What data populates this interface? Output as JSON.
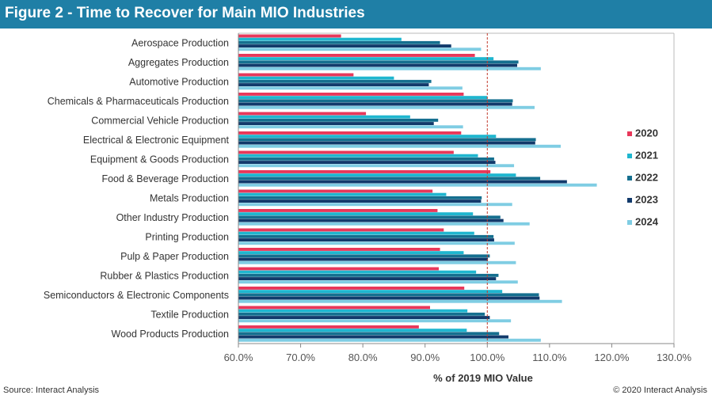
{
  "header": {
    "title": "Figure 2 - Time to Recover for Main MIO Industries"
  },
  "footer": {
    "source": "Source: Interact Analysis",
    "copyright": "© 2020 Interact Analysis"
  },
  "colors": {
    "header_bg": "#1f7fa6",
    "series_2020": "#e8385a",
    "series_2021": "#1fb6cf",
    "series_2022": "#156f8f",
    "series_2023": "#123a6b",
    "series_2024": "#7fcde3",
    "reference_line": "#c0392b"
  },
  "chart_data": {
    "type": "bar",
    "orientation": "horizontal",
    "xlabel": "% of 2019  MIO Value",
    "xlim": [
      60,
      130
    ],
    "xticks": [
      60,
      70,
      80,
      90,
      100,
      110,
      120,
      130
    ],
    "xtick_labels": [
      "60.0%",
      "70.0%",
      "80.0%",
      "90.0%",
      "100.0%",
      "110.0%",
      "120.0%",
      "130.0%"
    ],
    "reference_line": 100,
    "grid": false,
    "legend_position": "right",
    "categories": [
      "Aerospace Production",
      "Aggregates Production",
      "Automotive Production",
      "Chemicals & Pharmaceuticals Production",
      "Commercial Vehicle Production",
      "Electrical & Electronic Equipment",
      "Equipment & Goods Production",
      "Food & Beverage Production",
      "Metals Production",
      "Other Industry Production",
      "Printing Production",
      "Pulp & Paper Production",
      "Rubber & Plastics Production",
      "Semiconductors & Electronic Components",
      "Textile Production",
      "Wood Products Production"
    ],
    "series": [
      {
        "name": "2020",
        "values": [
          76.5,
          98.0,
          78.5,
          96.2,
          80.5,
          95.8,
          94.6,
          100.5,
          91.2,
          92.0,
          93.0,
          92.4,
          92.2,
          96.3,
          90.8,
          89.0
        ]
      },
      {
        "name": "2021",
        "values": [
          86.2,
          101.0,
          85.0,
          100.0,
          87.6,
          101.4,
          98.5,
          104.6,
          93.4,
          97.7,
          97.9,
          96.2,
          98.2,
          102.4,
          96.8,
          96.7
        ]
      },
      {
        "name": "2022",
        "values": [
          92.4,
          105.0,
          91.0,
          104.1,
          92.1,
          107.8,
          101.1,
          108.5,
          99.1,
          102.1,
          101.0,
          100.4,
          101.8,
          108.3,
          99.6,
          101.9
        ]
      },
      {
        "name": "2023",
        "values": [
          94.2,
          104.8,
          90.6,
          104.0,
          91.4,
          107.7,
          101.3,
          112.8,
          99.0,
          102.6,
          101.1,
          100.1,
          101.4,
          108.4,
          100.4,
          103.4
        ]
      },
      {
        "name": "2024",
        "values": [
          99.0,
          108.6,
          96.0,
          107.6,
          96.1,
          111.8,
          104.3,
          117.6,
          104.0,
          106.8,
          104.4,
          104.6,
          104.9,
          112.0,
          103.8,
          108.6
        ]
      }
    ]
  }
}
